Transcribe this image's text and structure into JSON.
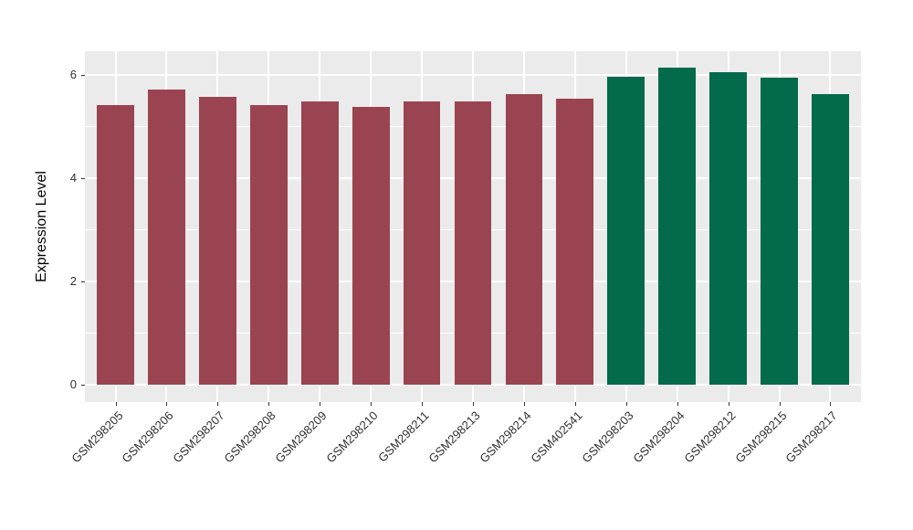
{
  "chart_data": {
    "type": "bar",
    "ylabel": "Expression Level",
    "xlabel": "",
    "categories": [
      "GSM298205",
      "GSM298206",
      "GSM298207",
      "GSM298208",
      "GSM298209",
      "GSM298210",
      "GSM298211",
      "GSM298213",
      "GSM298214",
      "GSM402541",
      "GSM298203",
      "GSM298204",
      "GSM298212",
      "GSM298215",
      "GSM298217"
    ],
    "values": [
      5.42,
      5.71,
      5.57,
      5.41,
      5.48,
      5.38,
      5.48,
      5.48,
      5.62,
      5.54,
      5.96,
      6.14,
      6.05,
      5.95,
      5.63
    ],
    "groups": [
      "maroon",
      "maroon",
      "maroon",
      "maroon",
      "maroon",
      "maroon",
      "maroon",
      "maroon",
      "maroon",
      "maroon",
      "green",
      "green",
      "green",
      "green",
      "green"
    ],
    "palette": {
      "maroon": "#9A4451",
      "green": "#036A4B"
    },
    "ylim": [
      -0.34,
      6.46
    ],
    "yticks": [
      0,
      2,
      4,
      6
    ],
    "yticks_minor": [
      1,
      3,
      5
    ],
    "grid": true,
    "legend_position": "none",
    "plot_background": "#EBEBEB",
    "gridline_color": "#FFFFFF",
    "tick_mark_color": "#333333",
    "tick_label_color": "#303030",
    "axis_title_color": "#000000",
    "bar_relative_width": 0.73
  }
}
